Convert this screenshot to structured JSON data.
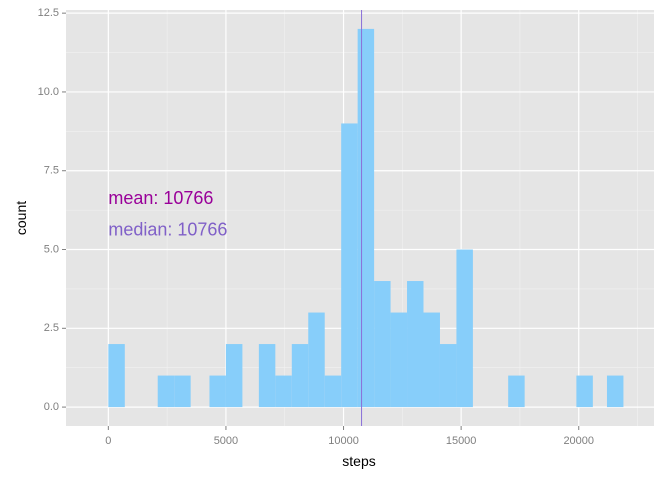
{
  "chart_data": {
    "type": "bar",
    "xlabel": "steps",
    "ylabel": "count",
    "xlim": [
      -1800,
      23200
    ],
    "ylim": [
      -0.6,
      12.6
    ],
    "x_ticks": [
      0,
      5000,
      10000,
      15000,
      20000
    ],
    "x_tick_labels": [
      "0",
      "5000",
      "10000",
      "15000",
      "20000"
    ],
    "y_ticks": [
      0.0,
      2.5,
      5.0,
      7.5,
      10.0,
      12.5
    ],
    "y_tick_labels": [
      "0.0",
      "2.5",
      "5.0",
      "7.5",
      "10.0",
      "12.5"
    ],
    "grid": true,
    "bins": [
      {
        "x0": 0,
        "x1": 700,
        "count": 2
      },
      {
        "x0": 2100,
        "x1": 2800,
        "count": 1
      },
      {
        "x0": 2800,
        "x1": 3500,
        "count": 1
      },
      {
        "x0": 4300,
        "x1": 5000,
        "count": 1
      },
      {
        "x0": 5000,
        "x1": 5700,
        "count": 2
      },
      {
        "x0": 6400,
        "x1": 7100,
        "count": 2
      },
      {
        "x0": 7100,
        "x1": 7800,
        "count": 1
      },
      {
        "x0": 7800,
        "x1": 8500,
        "count": 2
      },
      {
        "x0": 8500,
        "x1": 9200,
        "count": 3
      },
      {
        "x0": 9200,
        "x1": 9900,
        "count": 1
      },
      {
        "x0": 9900,
        "x1": 10600,
        "count": 9
      },
      {
        "x0": 10600,
        "x1": 11300,
        "count": 12
      },
      {
        "x0": 11300,
        "x1": 12000,
        "count": 4
      },
      {
        "x0": 12000,
        "x1": 12700,
        "count": 3
      },
      {
        "x0": 12700,
        "x1": 13400,
        "count": 4
      },
      {
        "x0": 13400,
        "x1": 14100,
        "count": 3
      },
      {
        "x0": 14100,
        "x1": 14800,
        "count": 2
      },
      {
        "x0": 14800,
        "x1": 15500,
        "count": 5
      },
      {
        "x0": 17000,
        "x1": 17700,
        "count": 1
      },
      {
        "x0": 19900,
        "x1": 20600,
        "count": 1
      },
      {
        "x0": 21200,
        "x1": 21900,
        "count": 1
      }
    ],
    "mean_line": {
      "value": 10766
    },
    "annotations": [
      {
        "text": "mean: 10766",
        "x": 0,
        "y": 6.6,
        "color": "#990099"
      },
      {
        "text": "median: 10766",
        "x": 0,
        "y": 5.6,
        "color": "#8060C8"
      }
    ],
    "colors": {
      "bar": "#87CEFA",
      "panel": "#E5E5E5",
      "grid_major": "#FFFFFF",
      "grid_minor": "#F2F2F2",
      "vline": "#8A6FD8",
      "axis_text": "#7F7F7F",
      "axis_title": "#000000"
    }
  }
}
